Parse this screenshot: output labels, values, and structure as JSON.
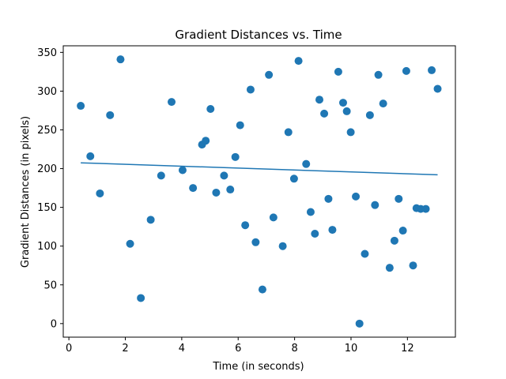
{
  "chart_data": {
    "type": "scatter",
    "title": "Gradient Distances vs. Time",
    "xlabel": "Time (in seconds)",
    "ylabel": "Gradient Distances (in pixels)",
    "xlim": [
      -0.2,
      13.7
    ],
    "ylim": [
      -17.5,
      358.5
    ],
    "xticks": [
      0,
      2,
      4,
      6,
      8,
      10,
      12
    ],
    "yticks": [
      0,
      50,
      100,
      150,
      200,
      250,
      300,
      350
    ],
    "grid": false,
    "legend": "none",
    "marker_color": "#1f77b4",
    "line_color": "#1f77b4",
    "series": [
      {
        "points": [
          [
            0.42,
            281
          ],
          [
            0.76,
            216
          ],
          [
            1.1,
            168
          ],
          [
            1.46,
            269
          ],
          [
            1.83,
            341
          ],
          [
            2.17,
            103
          ],
          [
            2.55,
            33
          ],
          [
            2.9,
            134
          ],
          [
            3.27,
            191
          ],
          [
            3.64,
            286
          ],
          [
            4.03,
            198
          ],
          [
            4.4,
            175
          ],
          [
            4.72,
            231
          ],
          [
            4.85,
            236
          ],
          [
            5.02,
            277
          ],
          [
            5.22,
            169
          ],
          [
            5.5,
            191
          ],
          [
            5.72,
            173
          ],
          [
            5.9,
            215
          ],
          [
            6.07,
            256
          ],
          [
            6.25,
            127
          ],
          [
            6.44,
            302
          ],
          [
            6.62,
            105
          ],
          [
            6.86,
            44
          ],
          [
            7.09,
            321
          ],
          [
            7.25,
            137
          ],
          [
            7.58,
            100
          ],
          [
            7.78,
            247
          ],
          [
            7.98,
            187
          ],
          [
            8.14,
            339
          ],
          [
            8.41,
            206
          ],
          [
            8.57,
            144
          ],
          [
            8.72,
            116
          ],
          [
            8.88,
            289
          ],
          [
            9.05,
            271
          ],
          [
            9.2,
            161
          ],
          [
            9.34,
            121
          ],
          [
            9.55,
            325
          ],
          [
            9.72,
            285
          ],
          [
            9.85,
            274
          ],
          [
            9.99,
            247
          ],
          [
            10.17,
            164
          ],
          [
            10.3,
            0
          ],
          [
            10.49,
            90
          ],
          [
            10.67,
            269
          ],
          [
            10.85,
            153
          ],
          [
            10.97,
            321
          ],
          [
            11.14,
            284
          ],
          [
            11.37,
            72
          ],
          [
            11.54,
            107
          ],
          [
            11.69,
            161
          ],
          [
            11.84,
            120
          ],
          [
            11.96,
            326
          ],
          [
            12.2,
            75
          ],
          [
            12.32,
            149
          ],
          [
            12.47,
            148
          ],
          [
            12.65,
            148
          ],
          [
            12.86,
            327
          ],
          [
            13.07,
            303
          ]
        ]
      }
    ],
    "trendline": {
      "x": [
        0.42,
        13.07
      ],
      "y": [
        207.5,
        192.0
      ]
    }
  }
}
